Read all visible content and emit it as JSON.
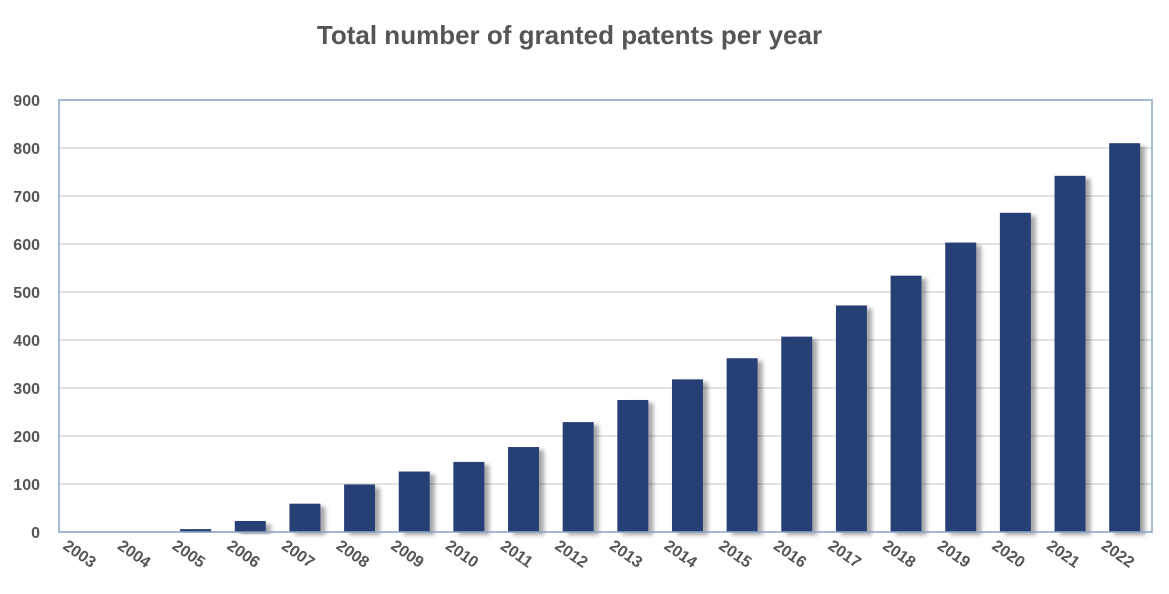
{
  "chart_data": {
    "type": "bar",
    "title": "Total number of granted patents per year",
    "xlabel": "",
    "ylabel": "",
    "categories": [
      "2003",
      "2004",
      "2005",
      "2006",
      "2007",
      "2008",
      "2009",
      "2010",
      "2011",
      "2012",
      "2013",
      "2014",
      "2015",
      "2016",
      "2017",
      "2018",
      "2019",
      "2020",
      "2021",
      "2022"
    ],
    "values": [
      0,
      0,
      6,
      23,
      59,
      99,
      126,
      146,
      177,
      229,
      275,
      318,
      362,
      407,
      472,
      534,
      603,
      665,
      742,
      810
    ],
    "ylim": [
      0,
      900
    ],
    "yticks": [
      0,
      100,
      200,
      300,
      400,
      500,
      600,
      700,
      800,
      900
    ],
    "grid": true,
    "legend": "none",
    "colors": {
      "bar": "#283f75",
      "shadow": "#bbbbbb",
      "grid": "#d2d2d2",
      "border": "#8ba6c7",
      "text": "#555555"
    }
  }
}
